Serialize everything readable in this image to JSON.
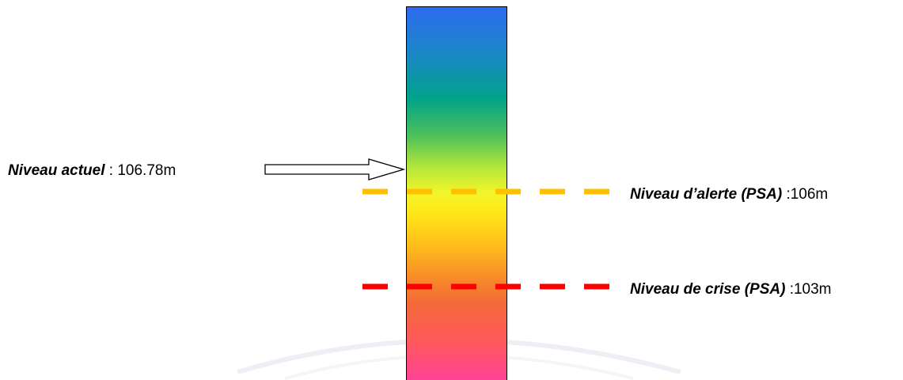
{
  "levels": {
    "current": {
      "name": "Niveau actuel",
      "separator": " : ",
      "value": "106.78m"
    },
    "alert": {
      "name": "Niveau d’alerte (PSA)",
      "separator": " :",
      "value": "106m",
      "color": "#ffc000"
    },
    "crisis": {
      "name": "Niveau de crise (PSA)",
      "separator": " :",
      "value": "103m",
      "color": "#ff0000"
    }
  },
  "gauge": {
    "gradient_top": "#2d6cf0",
    "gradient_bottom": "#ff3ea0"
  }
}
